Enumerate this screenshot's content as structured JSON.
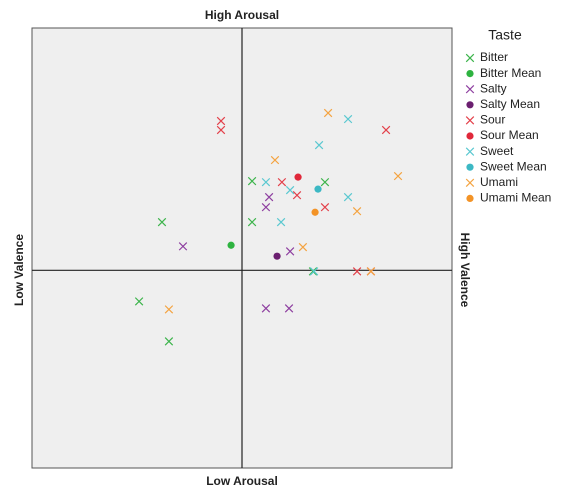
{
  "chart_data": {
    "type": "scatter",
    "top_label": "High Arousal",
    "bottom_label": "Low Arousal",
    "left_label": "Low Valence",
    "right_label": "High Valence",
    "legend_title": "Taste",
    "xlim": [
      -10,
      10
    ],
    "ylim": [
      -9.4,
      11.52
    ],
    "series": [
      {
        "name": "Bitter",
        "color": "#3cb44b",
        "marker": "x",
        "x": [
          -3.81,
          0.48,
          0.48,
          3.95,
          3.38,
          -4.9,
          -3.48
        ],
        "y": [
          2.29,
          4.24,
          2.29,
          4.19,
          -0.05,
          -1.48,
          -3.38
        ]
      },
      {
        "name": "Bitter Mean",
        "color": "#2eb340",
        "marker": "circle",
        "x": [
          -0.52
        ],
        "y": [
          1.19
        ]
      },
      {
        "name": "Salty",
        "color": "#8e3fa0",
        "marker": "x",
        "x": [
          -2.81,
          1.29,
          1.14,
          2.29,
          1.14,
          2.24
        ],
        "y": [
          1.14,
          3.48,
          3.0,
          0.9,
          -1.81,
          -1.81
        ]
      },
      {
        "name": "Salty Mean",
        "color": "#6b1f70",
        "marker": "circle",
        "x": [
          1.67
        ],
        "y": [
          0.67
        ]
      },
      {
        "name": "Sour",
        "color": "#e3404a",
        "marker": "x",
        "x": [
          -1.0,
          -1.0,
          6.86,
          1.9,
          2.62,
          3.95,
          5.48,
          6.14
        ],
        "y": [
          7.1,
          6.67,
          6.67,
          4.19,
          3.57,
          3.0,
          -0.05,
          -0.05
        ]
      },
      {
        "name": "Sour Mean",
        "color": "#e0283a",
        "marker": "circle",
        "x": [
          2.67
        ],
        "y": [
          4.43
        ]
      },
      {
        "name": "Sweet",
        "color": "#5ac8d0",
        "marker": "x",
        "x": [
          5.05,
          3.67,
          1.14,
          2.29,
          5.05,
          1.86,
          3.43
        ],
        "y": [
          7.19,
          5.95,
          4.19,
          3.81,
          3.48,
          2.29,
          -0.05
        ]
      },
      {
        "name": "Sweet Mean",
        "color": "#3cb8c4",
        "marker": "circle",
        "x": [
          3.62
        ],
        "y": [
          3.86
        ]
      },
      {
        "name": "Umami",
        "color": "#f4a340",
        "marker": "x",
        "x": [
          4.1,
          1.57,
          7.43,
          5.48,
          2.9,
          6.14,
          -3.48
        ],
        "y": [
          7.48,
          5.24,
          4.48,
          2.81,
          1.1,
          -0.05,
          -1.86
        ]
      },
      {
        "name": "Umami Mean",
        "color": "#f39326",
        "marker": "circle",
        "x": [
          3.48
        ],
        "y": [
          2.76
        ]
      }
    ]
  }
}
